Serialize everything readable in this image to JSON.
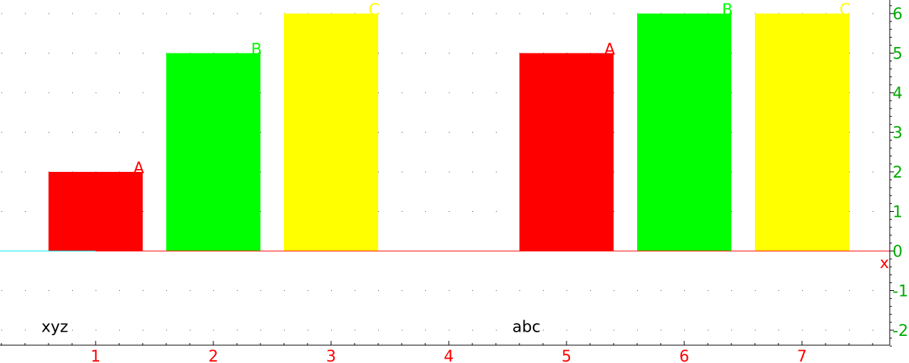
{
  "chart_data": {
    "type": "bar",
    "title": "",
    "xlabel": "x",
    "ylabel": "",
    "xlim": [
      0.2,
      7.75
    ],
    "ylim": [
      -2.4,
      6.3
    ],
    "x_ticks": [
      "1",
      "2",
      "3",
      "4",
      "5",
      "6",
      "7"
    ],
    "y_ticks": [
      "-2",
      "-1",
      "0",
      "1",
      "2",
      "3",
      "4",
      "5",
      "6"
    ],
    "grid": true,
    "bars": [
      {
        "x": 1,
        "value": 2,
        "label": "A",
        "color": "#ff0000"
      },
      {
        "x": 2,
        "value": 5,
        "label": "B",
        "color": "#00ff00"
      },
      {
        "x": 3,
        "value": 6,
        "label": "C",
        "color": "#ffff00"
      },
      {
        "x": 5,
        "value": 5,
        "label": "A",
        "color": "#ff0000"
      },
      {
        "x": 6,
        "value": 6,
        "label": "B",
        "color": "#00ff00"
      },
      {
        "x": 7,
        "value": 6,
        "label": "C",
        "color": "#ffff00"
      }
    ],
    "group_labels": [
      {
        "x": 0.6,
        "y": -1.9,
        "text": "xyz"
      },
      {
        "x": 4.6,
        "y": -1.9,
        "text": "abc"
      }
    ],
    "colors": {
      "x_axis": "#ff0000",
      "y_axis": "#000000",
      "x_tick_labels": "#ff0000",
      "y_tick_labels": "#00aa00",
      "grid_dots": "#444444",
      "baseline_segment": "#00e5e5",
      "group_labels": "#000000"
    }
  }
}
